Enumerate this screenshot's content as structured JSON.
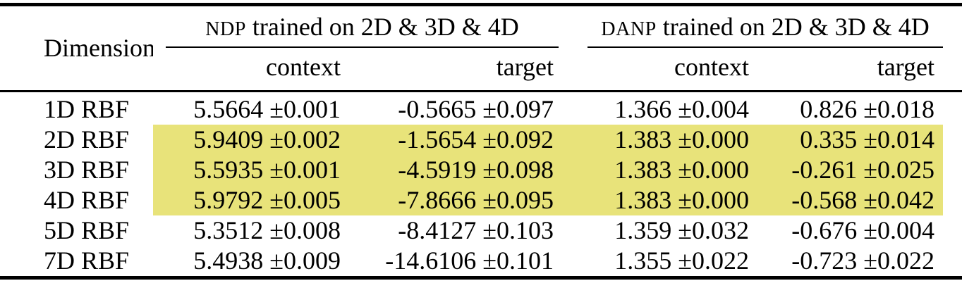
{
  "table": {
    "dimension_header": "Dimension",
    "groups": [
      {
        "name_sc": "NDP",
        "name_rest": " trained on 2D & 3D & 4D"
      },
      {
        "name_sc": "DANP",
        "name_rest": " trained on 2D & 3D & 4D"
      }
    ],
    "subcolumns": [
      "context",
      "target",
      "context",
      "target"
    ],
    "highlight_color": "#e8e37a",
    "rows": [
      {
        "dimension": "1D RBF",
        "values": [
          "5.5664 ±0.001",
          "-0.5665 ±0.097",
          "1.366 ±0.004",
          "0.826 ±0.018"
        ],
        "highlighted": false
      },
      {
        "dimension": "2D RBF",
        "values": [
          "5.9409 ±0.002",
          "-1.5654 ±0.092",
          "1.383 ±0.000",
          "0.335 ±0.014"
        ],
        "highlighted": true
      },
      {
        "dimension": "3D RBF",
        "values": [
          "5.5935 ±0.001",
          "-4.5919 ±0.098",
          "1.383 ±0.000",
          "-0.261 ±0.025"
        ],
        "highlighted": true
      },
      {
        "dimension": "4D RBF",
        "values": [
          "5.9792 ±0.005",
          "-7.8666 ±0.095",
          "1.383 ±0.000",
          "-0.568 ±0.042"
        ],
        "highlighted": true
      },
      {
        "dimension": "5D RBF",
        "values": [
          "5.3512 ±0.008",
          "-8.4127 ±0.103",
          "1.359 ±0.032",
          "-0.676 ±0.004"
        ],
        "highlighted": false
      },
      {
        "dimension": "7D RBF",
        "values": [
          "5.4938 ±0.009",
          "-14.6106 ±0.101",
          "1.355 ±0.022",
          "-0.723 ±0.022"
        ],
        "highlighted": false
      }
    ]
  }
}
